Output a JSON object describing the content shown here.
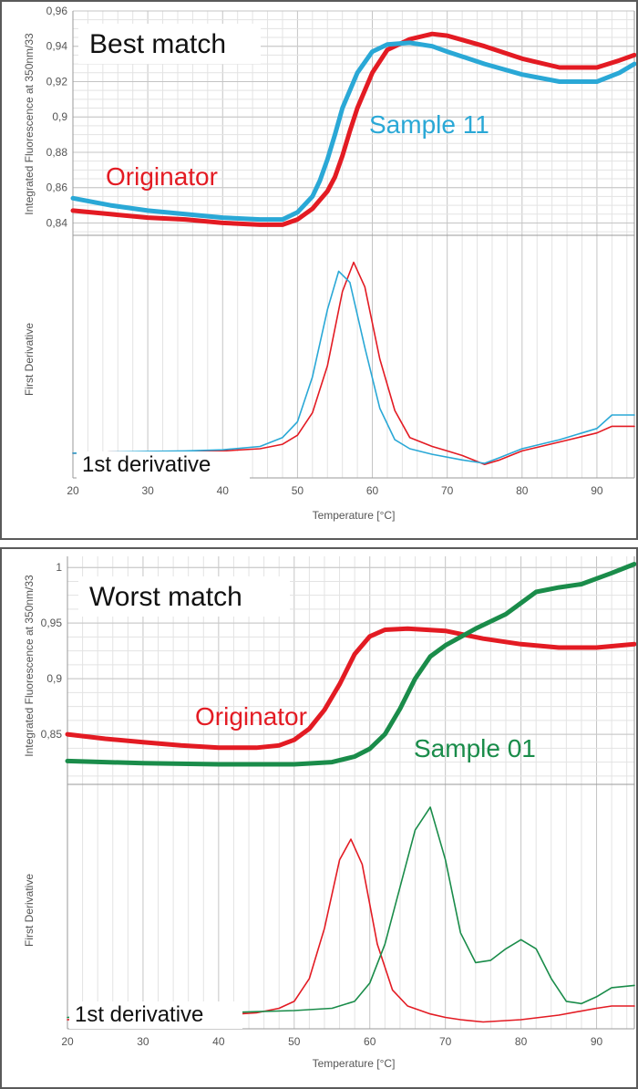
{
  "chart_data": [
    {
      "type": "line",
      "title": "Best match",
      "x_axis": {
        "label": "Temperature [°C]",
        "min": 20,
        "max": 95,
        "ticks": [
          20,
          30,
          40,
          50,
          60,
          70,
          80,
          90
        ]
      },
      "top_plot": {
        "ylabel": "Integrated Fluorescence at 350nm/33",
        "ylim": [
          0.833,
          0.96
        ],
        "y_ticks": [
          "0,84",
          "0,86",
          "0,88",
          "0,9",
          "0,92",
          "0,94",
          "0,96"
        ],
        "series": [
          {
            "name": "Originator",
            "color": "#e31b23",
            "x": [
              20,
              25,
              30,
              35,
              40,
              45,
              48,
              50,
              52,
              54,
              55,
              56,
              57,
              58,
              60,
              62,
              65,
              68,
              70,
              75,
              80,
              85,
              90,
              93,
              95
            ],
            "y": [
              0.847,
              0.845,
              0.843,
              0.842,
              0.84,
              0.839,
              0.839,
              0.842,
              0.848,
              0.858,
              0.866,
              0.878,
              0.892,
              0.905,
              0.925,
              0.938,
              0.944,
              0.947,
              0.946,
              0.94,
              0.933,
              0.928,
              0.928,
              0.932,
              0.935
            ]
          },
          {
            "name": "Sample 11",
            "color": "#2aa8d6",
            "x": [
              20,
              25,
              30,
              35,
              40,
              45,
              48,
              50,
              52,
              53,
              54,
              55,
              56,
              58,
              60,
              62,
              65,
              68,
              70,
              75,
              80,
              85,
              90,
              93,
              95
            ],
            "y": [
              0.854,
              0.85,
              0.847,
              0.845,
              0.843,
              0.842,
              0.842,
              0.846,
              0.855,
              0.864,
              0.876,
              0.89,
              0.905,
              0.925,
              0.937,
              0.941,
              0.942,
              0.94,
              0.937,
              0.93,
              0.924,
              0.92,
              0.92,
              0.925,
              0.93
            ]
          }
        ]
      },
      "bottom_plot": {
        "ylabel": "First Derivative",
        "ylim": [
          -0.03,
          1.05
        ],
        "series": [
          {
            "name": "Originator",
            "color": "#e31b23",
            "x": [
              20,
              25,
              30,
              35,
              40,
              45,
              48,
              50,
              52,
              54,
              56,
              57.5,
              59,
              61,
              63,
              65,
              68,
              70,
              72,
              75,
              77,
              80,
              85,
              90,
              92,
              95
            ],
            "y": [
              0.08,
              0.085,
              0.085,
              0.088,
              0.09,
              0.1,
              0.12,
              0.16,
              0.26,
              0.47,
              0.8,
              0.93,
              0.82,
              0.5,
              0.27,
              0.15,
              0.11,
              0.09,
              0.07,
              0.03,
              0.05,
              0.09,
              0.13,
              0.17,
              0.2,
              0.2
            ]
          },
          {
            "name": "Sample 11",
            "color": "#2aa8d6",
            "x": [
              20,
              25,
              30,
              35,
              40,
              45,
              48,
              50,
              52,
              54,
              55.5,
              57,
              59,
              61,
              63,
              65,
              68,
              72,
              75,
              77,
              80,
              85,
              90,
              92,
              95
            ],
            "y": [
              0.08,
              0.085,
              0.088,
              0.09,
              0.095,
              0.11,
              0.15,
              0.22,
              0.42,
              0.72,
              0.89,
              0.84,
              0.55,
              0.28,
              0.14,
              0.1,
              0.075,
              0.05,
              0.035,
              0.06,
              0.1,
              0.14,
              0.19,
              0.25,
              0.25
            ]
          }
        ]
      },
      "annotations": [
        {
          "text": "Originator",
          "color": "#e31b23"
        },
        {
          "text": "Sample 11",
          "color": "#2aa8d6"
        },
        {
          "text": "1st derivative",
          "color": "#111111"
        }
      ]
    },
    {
      "type": "line",
      "title": "Worst match",
      "x_axis": {
        "label": "Temperature [°C]",
        "min": 20,
        "max": 95,
        "ticks": [
          20,
          30,
          40,
          50,
          60,
          70,
          80,
          90
        ]
      },
      "top_plot": {
        "ylabel": "Integrated Fluorescence at 350nm/33",
        "ylim": [
          0.805,
          1.01
        ],
        "y_ticks": [
          "0,85",
          "0,9",
          "0,95",
          "1"
        ],
        "series": [
          {
            "name": "Originator",
            "color": "#e31b23",
            "x": [
              20,
              25,
              30,
              35,
              40,
              45,
              48,
              50,
              52,
              54,
              56,
              58,
              60,
              62,
              65,
              70,
              75,
              80,
              85,
              90,
              95
            ],
            "y": [
              0.85,
              0.846,
              0.843,
              0.84,
              0.838,
              0.838,
              0.84,
              0.845,
              0.855,
              0.872,
              0.895,
              0.922,
              0.938,
              0.944,
              0.945,
              0.943,
              0.936,
              0.931,
              0.928,
              0.928,
              0.931
            ]
          },
          {
            "name": "Sample 01",
            "color": "#1a8c4a",
            "x": [
              20,
              30,
              40,
              50,
              55,
              58,
              60,
              62,
              64,
              66,
              68,
              70,
              74,
              78,
              80,
              82,
              85,
              88,
              92,
              95
            ],
            "y": [
              0.826,
              0.824,
              0.823,
              0.823,
              0.825,
              0.83,
              0.837,
              0.85,
              0.873,
              0.9,
              0.92,
              0.93,
              0.945,
              0.958,
              0.968,
              0.978,
              0.982,
              0.985,
              0.995,
              1.003
            ]
          }
        ]
      },
      "bottom_plot": {
        "ylabel": "First Derivative",
        "ylim": [
          -0.02,
          1.05
        ],
        "series": [
          {
            "name": "Originator",
            "color": "#e31b23",
            "x": [
              20,
              25,
              30,
              35,
              40,
              45,
              48,
              50,
              52,
              54,
              56,
              57.5,
              59,
              61,
              63,
              65,
              68,
              70,
              72,
              75,
              80,
              85,
              90,
              92,
              95
            ],
            "y": [
              0.02,
              0.025,
              0.03,
              0.035,
              0.04,
              0.05,
              0.07,
              0.1,
              0.2,
              0.42,
              0.72,
              0.81,
              0.7,
              0.35,
              0.15,
              0.08,
              0.045,
              0.03,
              0.02,
              0.01,
              0.02,
              0.04,
              0.07,
              0.08,
              0.08
            ]
          },
          {
            "name": "Sample 01",
            "color": "#1a8c4a",
            "x": [
              20,
              25,
              30,
              35,
              40,
              45,
              50,
              55,
              58,
              60,
              62,
              64,
              66,
              68,
              70,
              72,
              74,
              76,
              78,
              80,
              82,
              84,
              86,
              88,
              90,
              92,
              95
            ],
            "y": [
              0.03,
              0.035,
              0.04,
              0.045,
              0.05,
              0.055,
              0.06,
              0.07,
              0.1,
              0.18,
              0.35,
              0.6,
              0.85,
              0.95,
              0.72,
              0.4,
              0.27,
              0.28,
              0.33,
              0.37,
              0.33,
              0.2,
              0.1,
              0.09,
              0.12,
              0.16,
              0.17
            ]
          }
        ]
      },
      "annotations": [
        {
          "text": "Originator",
          "color": "#e31b23"
        },
        {
          "text": "Sample 01",
          "color": "#1a8c4a"
        },
        {
          "text": "1st derivative",
          "color": "#111111"
        }
      ]
    }
  ]
}
